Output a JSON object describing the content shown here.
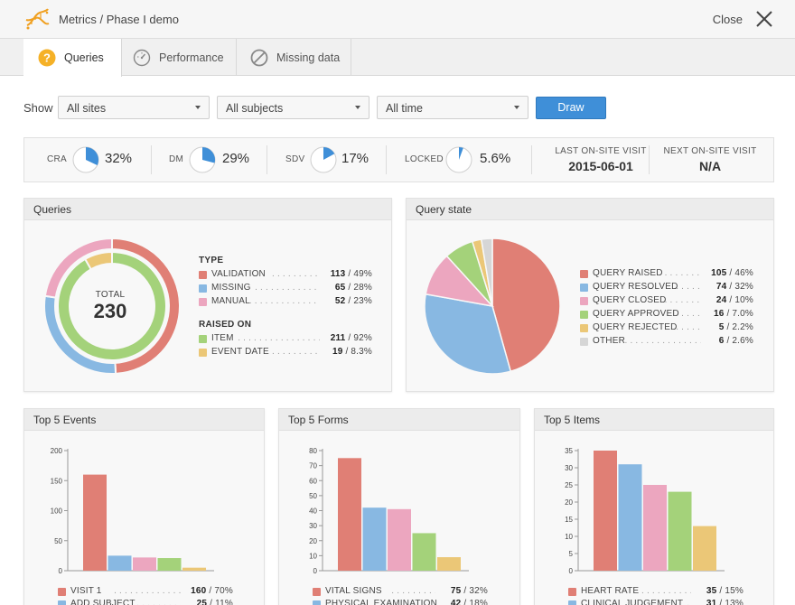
{
  "header": {
    "title": "Metrics / Phase I demo",
    "close_label": "Close"
  },
  "tabs": [
    {
      "label": "Queries",
      "icon": "question-icon",
      "active": true
    },
    {
      "label": "Performance",
      "icon": "gauge-icon",
      "active": false
    },
    {
      "label": "Missing data",
      "icon": "prohibited-icon",
      "active": false
    }
  ],
  "filters": {
    "show_label": "Show",
    "sites": "All sites",
    "subjects": "All subjects",
    "time": "All time",
    "draw_label": "Draw"
  },
  "stats": [
    {
      "label": "CRA",
      "value": "32%",
      "fraction": 0.32
    },
    {
      "label": "DM",
      "value": "29%",
      "fraction": 0.29
    },
    {
      "label": "SDV",
      "value": "17%",
      "fraction": 0.17
    },
    {
      "label": "LOCKED",
      "value": "5.6%",
      "fraction": 0.056
    }
  ],
  "visits": {
    "last_label": "LAST ON-SITE VISIT",
    "last_value": "2015-06-01",
    "next_label": "NEXT ON-SITE VISIT",
    "next_value": "N/A"
  },
  "colors": {
    "red": "#e07f75",
    "blue": "#88b8e2",
    "pink": "#eca6bf",
    "green": "#a4d27a",
    "yellow": "#ebc777",
    "gray": "#d6d6d6",
    "accent": "#3f8fd8"
  },
  "queries_panel": {
    "title": "Queries",
    "total_label": "TOTAL",
    "total_value": "230",
    "type_header": "TYPE",
    "raised_header": "RAISED ON",
    "type_items": [
      {
        "name": "VALIDATION",
        "count": "113",
        "pct": "49%",
        "value": 113,
        "color": "#e07f75"
      },
      {
        "name": "MISSING",
        "count": "65",
        "pct": "28%",
        "value": 65,
        "color": "#88b8e2"
      },
      {
        "name": "MANUAL",
        "count": "52",
        "pct": "23%",
        "value": 52,
        "color": "#eca6bf"
      }
    ],
    "raised_items": [
      {
        "name": "ITEM",
        "count": "211",
        "pct": "92%",
        "value": 211,
        "color": "#a4d27a"
      },
      {
        "name": "EVENT DATE",
        "count": "19",
        "pct": "8.3%",
        "value": 19,
        "color": "#ebc777"
      }
    ]
  },
  "query_state_panel": {
    "title": "Query state",
    "items": [
      {
        "name": "QUERY RAISED",
        "count": "105",
        "pct": "46%",
        "value": 105,
        "color": "#e07f75"
      },
      {
        "name": "QUERY RESOLVED",
        "count": "74",
        "pct": "32%",
        "value": 74,
        "color": "#88b8e2"
      },
      {
        "name": "QUERY CLOSED",
        "count": "24",
        "pct": "10%",
        "value": 24,
        "color": "#eca6bf"
      },
      {
        "name": "QUERY APPROVED",
        "count": "16",
        "pct": "7.0%",
        "value": 16,
        "color": "#a4d27a"
      },
      {
        "name": "QUERY REJECTED",
        "count": "5",
        "pct": "2.2%",
        "value": 5,
        "color": "#ebc777"
      },
      {
        "name": "OTHER",
        "count": "6",
        "pct": "2.6%",
        "value": 6,
        "color": "#d6d6d6"
      }
    ]
  },
  "bar_panels": [
    {
      "title": "Top 5 Events",
      "legend": [
        {
          "name": "VISIT 1",
          "count": "160",
          "pct": "70%",
          "color": "#e07f75"
        },
        {
          "name": "ADD SUBJECT",
          "count": "25",
          "pct": "11%",
          "color": "#88b8e2"
        }
      ]
    },
    {
      "title": "Top 5 Forms",
      "legend": [
        {
          "name": "VITAL SIGNS",
          "count": "75",
          "pct": "32%",
          "color": "#e07f75"
        },
        {
          "name": "PHYSICAL EXAMINATION",
          "count": "42",
          "pct": "18%",
          "color": "#88b8e2"
        }
      ]
    },
    {
      "title": "Top 5 Items",
      "legend": [
        {
          "name": "HEART RATE",
          "count": "35",
          "pct": "15%",
          "color": "#e07f75"
        },
        {
          "name": "CLINICAL JUDGEMENT",
          "count": "31",
          "pct": "13%",
          "color": "#88b8e2"
        }
      ]
    }
  ],
  "chart_data": [
    {
      "type": "bar",
      "title": "Top 5 Events",
      "categories": [
        "VISIT 1",
        "ADD SUBJECT",
        "",
        "",
        ""
      ],
      "values": [
        160,
        25,
        22,
        21,
        5
      ],
      "colors": [
        "#e07f75",
        "#88b8e2",
        "#eca6bf",
        "#a4d27a",
        "#ebc777"
      ],
      "ylim": [
        0,
        200
      ],
      "yticks": [
        0,
        50,
        100,
        150,
        200
      ]
    },
    {
      "type": "bar",
      "title": "Top 5 Forms",
      "categories": [
        "VITAL SIGNS",
        "PHYSICAL EXAMINATION",
        "",
        "",
        ""
      ],
      "values": [
        75,
        42,
        41,
        25,
        9
      ],
      "colors": [
        "#e07f75",
        "#88b8e2",
        "#eca6bf",
        "#a4d27a",
        "#ebc777"
      ],
      "ylim": [
        0,
        80
      ],
      "yticks": [
        0,
        10,
        20,
        30,
        40,
        50,
        60,
        70,
        80
      ]
    },
    {
      "type": "bar",
      "title": "Top 5 Items",
      "categories": [
        "HEART RATE",
        "CLINICAL JUDGEMENT",
        "",
        "",
        ""
      ],
      "values": [
        35,
        31,
        25,
        23,
        13
      ],
      "colors": [
        "#e07f75",
        "#88b8e2",
        "#eca6bf",
        "#a4d27a",
        "#ebc777"
      ],
      "ylim": [
        0,
        35
      ],
      "yticks": [
        0,
        5,
        10,
        15,
        20,
        25,
        30,
        35
      ]
    }
  ]
}
